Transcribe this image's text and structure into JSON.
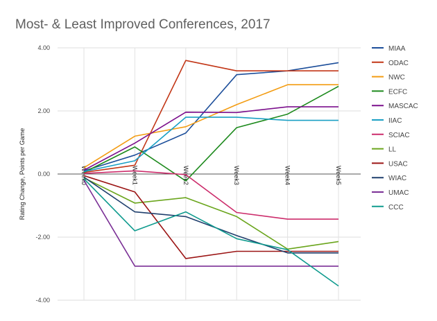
{
  "chart_data": {
    "type": "line",
    "title": "Most- & Least Improved Conferences, 2017",
    "xlabel": "",
    "ylabel": "Rating Change, Points per Game",
    "ylim": [
      -4,
      4
    ],
    "yticks": [
      "4.00",
      "2.00",
      "0.00",
      "-2.00",
      "-4.00"
    ],
    "ytick_values": [
      4,
      2,
      0,
      -2,
      -4
    ],
    "categories": [
      "Week0",
      "Week1",
      "Week2",
      "Week3",
      "Week4",
      "Week5"
    ],
    "grid": "horizontal",
    "legend_position": "right",
    "series": [
      {
        "name": "MIAA",
        "color": "#1c4e9a",
        "values": [
          0.1,
          0.6,
          1.3,
          3.15,
          3.27,
          3.53
        ]
      },
      {
        "name": "ODAC",
        "color": "#c23616",
        "values": [
          0.05,
          0.28,
          3.6,
          3.27,
          3.27,
          3.27
        ]
      },
      {
        "name": "NWC",
        "color": "#f39c12",
        "values": [
          0.2,
          1.2,
          1.5,
          2.2,
          2.83,
          2.83
        ]
      },
      {
        "name": "ECFC",
        "color": "#1d8a1d",
        "values": [
          0.05,
          0.86,
          -0.22,
          1.47,
          1.9,
          2.78
        ]
      },
      {
        "name": "MASCAC",
        "color": "#7b0f8c",
        "values": [
          0.12,
          0.98,
          1.96,
          1.95,
          2.13,
          2.13
        ]
      },
      {
        "name": "IIAC",
        "color": "#1a9fc4",
        "values": [
          0.08,
          0.42,
          1.8,
          1.8,
          1.7,
          1.7
        ]
      },
      {
        "name": "SCIAC",
        "color": "#cc2c6b",
        "values": [
          0.02,
          0.1,
          -0.02,
          -1.22,
          -1.43,
          -1.43
        ]
      },
      {
        "name": "LL",
        "color": "#6aa51c",
        "values": [
          -0.12,
          -0.92,
          -0.75,
          -1.35,
          -2.38,
          -2.14
        ]
      },
      {
        "name": "USAC",
        "color": "#9b1414",
        "values": [
          -0.05,
          -0.57,
          -2.68,
          -2.45,
          -2.45,
          -2.45
        ]
      },
      {
        "name": "WIAC",
        "color": "#1f3f6d",
        "values": [
          -0.1,
          -1.2,
          -1.35,
          -1.95,
          -2.5,
          -2.5
        ]
      },
      {
        "name": "UMAC",
        "color": "#7a2f95",
        "values": [
          -0.2,
          -2.92,
          -2.92,
          -2.92,
          -2.92,
          -2.92
        ]
      },
      {
        "name": "CCC",
        "color": "#0f9b8e",
        "values": [
          -0.15,
          -1.8,
          -1.2,
          -2.05,
          -2.4,
          -3.55
        ]
      }
    ]
  }
}
